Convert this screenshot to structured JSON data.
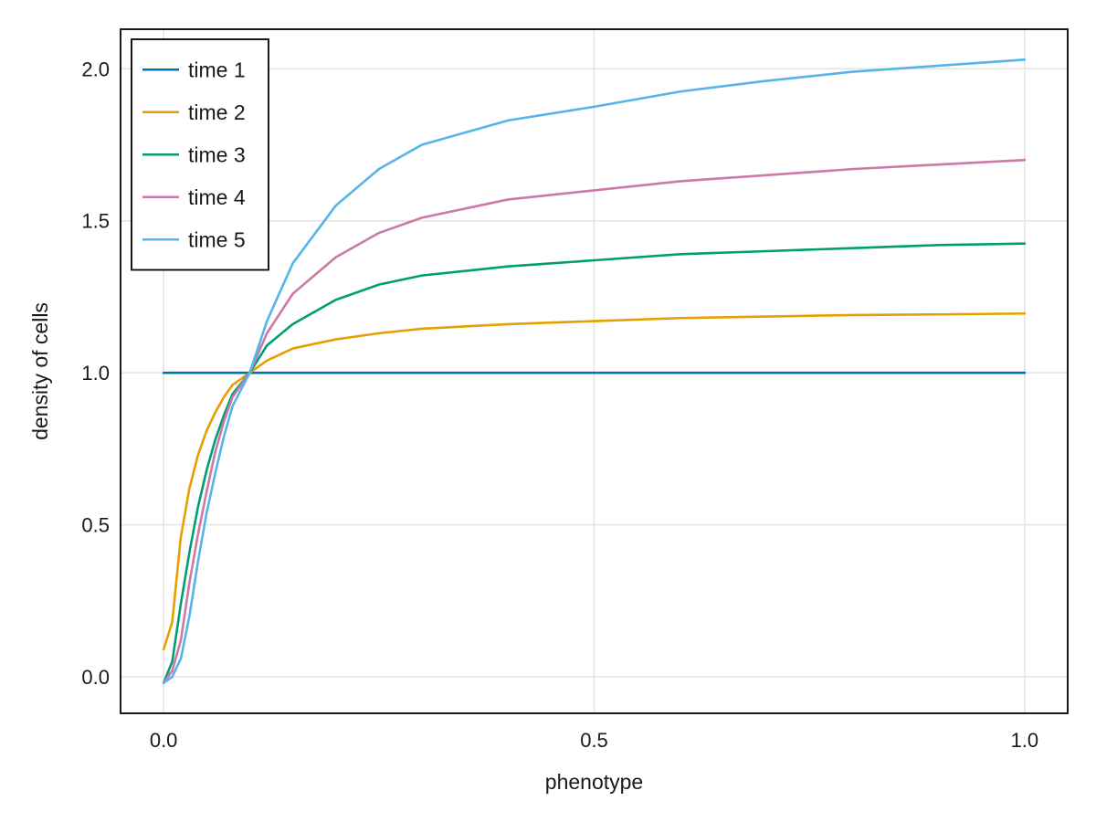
{
  "chart_data": {
    "type": "line",
    "title": "",
    "xlabel": "phenotype",
    "ylabel": "density of cells",
    "xlim": [
      -0.05,
      1.05
    ],
    "ylim": [
      -0.12,
      2.13
    ],
    "xticks": [
      0.0,
      0.5,
      1.0
    ],
    "xtick_labels": [
      "0.0",
      "0.5",
      "1.0"
    ],
    "yticks": [
      0.0,
      0.5,
      1.0,
      1.5,
      2.0
    ],
    "ytick_labels": [
      "0.0",
      "0.5",
      "1.0",
      "1.5",
      "2.0"
    ],
    "grid": true,
    "legend_position": "top-left",
    "x": [
      0.0,
      0.01,
      0.02,
      0.03,
      0.04,
      0.05,
      0.06,
      0.07,
      0.08,
      0.1,
      0.12,
      0.15,
      0.2,
      0.25,
      0.3,
      0.4,
      0.5,
      0.6,
      0.7,
      0.8,
      0.9,
      1.0
    ],
    "series": [
      {
        "name": "time 1",
        "color": "#0072b2",
        "values": [
          1.0,
          1.0,
          1.0,
          1.0,
          1.0,
          1.0,
          1.0,
          1.0,
          1.0,
          1.0,
          1.0,
          1.0,
          1.0,
          1.0,
          1.0,
          1.0,
          1.0,
          1.0,
          1.0,
          1.0,
          1.0,
          1.0
        ]
      },
      {
        "name": "time 2",
        "color": "#e69f00",
        "values": [
          0.09,
          0.18,
          0.46,
          0.62,
          0.73,
          0.81,
          0.87,
          0.92,
          0.96,
          1.0,
          1.04,
          1.08,
          1.11,
          1.13,
          1.145,
          1.16,
          1.17,
          1.18,
          1.185,
          1.19,
          1.192,
          1.195
        ]
      },
      {
        "name": "time 3",
        "color": "#009e73",
        "values": [
          -0.02,
          0.05,
          0.24,
          0.41,
          0.56,
          0.68,
          0.78,
          0.86,
          0.93,
          1.0,
          1.09,
          1.16,
          1.24,
          1.29,
          1.32,
          1.35,
          1.37,
          1.39,
          1.4,
          1.41,
          1.42,
          1.425
        ]
      },
      {
        "name": "time 4",
        "color": "#cc79a7",
        "values": [
          -0.02,
          0.02,
          0.12,
          0.31,
          0.47,
          0.61,
          0.74,
          0.84,
          0.92,
          1.0,
          1.13,
          1.26,
          1.38,
          1.46,
          1.51,
          1.57,
          1.6,
          1.63,
          1.65,
          1.67,
          1.685,
          1.7
        ]
      },
      {
        "name": "time 5",
        "color": "#56b4e9",
        "values": [
          -0.02,
          0.0,
          0.06,
          0.2,
          0.38,
          0.54,
          0.67,
          0.79,
          0.89,
          1.0,
          1.17,
          1.36,
          1.55,
          1.67,
          1.75,
          1.83,
          1.875,
          1.925,
          1.96,
          1.99,
          2.01,
          2.03
        ]
      }
    ]
  }
}
